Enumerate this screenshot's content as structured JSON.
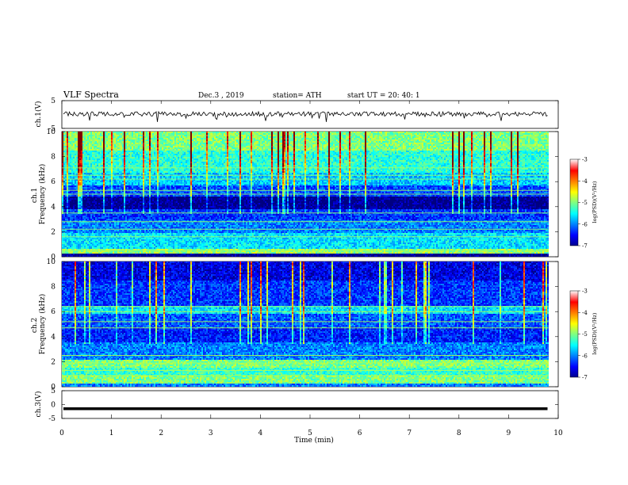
{
  "header": {
    "title": "VLF  Spectra",
    "date": "Dec.3  , 2019",
    "station": "station= ATH",
    "start": "start  UT  =    20: 40: 1"
  },
  "chart_data": [
    {
      "type": "line",
      "panel": "ch1_waveform",
      "ylabel": "ch.1(V)",
      "ylim": [
        -5,
        5
      ],
      "y_ticks": [
        "5",
        "-5"
      ],
      "x_range_min": [
        0,
        9.8
      ],
      "approx_level_v": 0.2,
      "color": "#000000"
    },
    {
      "type": "heatmap",
      "panel": "ch1_spectrogram",
      "ylabel": "ch.1\nFrequency  (kHz)",
      "ylim": [
        0,
        10
      ],
      "y_ticks": [
        "0",
        "2",
        "4",
        "6",
        "8",
        "10"
      ],
      "x_range_min": [
        0,
        9.8
      ],
      "colorbar": {
        "label": "log(PSD)(V²/Hz)",
        "ticks": [
          "-3",
          "-4",
          "-5",
          "-6",
          "-7"
        ],
        "range": [
          -7,
          -3
        ]
      },
      "bands_khz": [
        {
          "from": 0.0,
          "to": 0.3,
          "level": -7.0
        },
        {
          "from": 0.3,
          "to": 0.7,
          "level": -4.9
        },
        {
          "from": 0.7,
          "to": 2.0,
          "level": -5.6
        },
        {
          "from": 2.0,
          "to": 3.0,
          "level": -6.0
        },
        {
          "from": 3.0,
          "to": 3.8,
          "level": -6.3
        },
        {
          "from": 3.8,
          "to": 4.9,
          "level": -6.95
        },
        {
          "from": 4.9,
          "to": 5.8,
          "level": -6.2
        },
        {
          "from": 5.8,
          "to": 6.8,
          "level": -5.7
        },
        {
          "from": 6.8,
          "to": 8.5,
          "level": -5.35
        },
        {
          "from": 8.5,
          "to": 10.0,
          "level": -5.0
        }
      ],
      "lines_khz": [
        0.5,
        1.6,
        2.2,
        2.8,
        3.5,
        5.0,
        5.3,
        6.2,
        6.5,
        7.1
      ],
      "lines_level": -4.9
    },
    {
      "type": "heatmap",
      "panel": "ch2_spectrogram",
      "ylabel": "ch.2\nFrequency  (kHz)",
      "ylim": [
        0,
        10
      ],
      "y_ticks": [
        "0",
        "2",
        "4",
        "6",
        "8",
        "10"
      ],
      "x_range_min": [
        0,
        9.8
      ],
      "colorbar": {
        "label": "log(PSD)(V²/Hz)",
        "ticks": [
          "-3",
          "-4",
          "-5",
          "-6",
          "-7"
        ],
        "range": [
          -7,
          -3
        ]
      },
      "bands_khz": [
        {
          "from": 0.0,
          "to": 0.3,
          "level": -6.0
        },
        {
          "from": 0.3,
          "to": 1.0,
          "level": -5.0
        },
        {
          "from": 1.0,
          "to": 1.6,
          "level": -5.3
        },
        {
          "from": 1.6,
          "to": 2.2,
          "level": -5.0
        },
        {
          "from": 2.2,
          "to": 3.6,
          "level": -6.0
        },
        {
          "from": 3.6,
          "to": 4.8,
          "level": -6.4
        },
        {
          "from": 4.8,
          "to": 5.9,
          "level": -6.15
        },
        {
          "from": 5.9,
          "to": 6.5,
          "level": -5.6
        },
        {
          "from": 6.5,
          "to": 8.5,
          "level": -6.3
        },
        {
          "from": 8.5,
          "to": 10.0,
          "level": -6.6
        }
      ],
      "lines_khz": [
        0.9,
        1.3,
        1.9,
        2.5,
        4.7,
        5.2,
        6.0,
        6.4
      ],
      "lines_level": -4.8
    },
    {
      "type": "line",
      "panel": "ch3_waveform",
      "ylabel": "ch.3(V)",
      "ylim": [
        -5,
        5
      ],
      "y_ticks": [
        "5",
        "0",
        "-5"
      ],
      "x_range_min": [
        0,
        9.8
      ],
      "approx_level_v": -1.5,
      "color": "#000000"
    }
  ],
  "x_axis": {
    "label": "Time  (min)",
    "ticks": [
      "0",
      "1",
      "2",
      "3",
      "4",
      "5",
      "6",
      "7",
      "8",
      "9",
      "10"
    ],
    "range": [
      0,
      10
    ]
  }
}
